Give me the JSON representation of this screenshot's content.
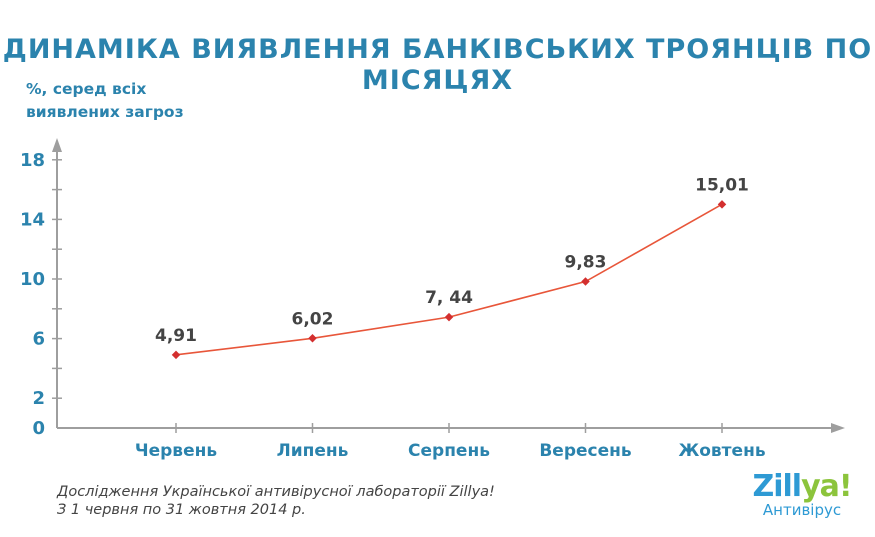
{
  "chart_data": {
    "type": "line",
    "title": "ДИНАМІКА ВИЯВЛЕННЯ БАНКІВСЬКИХ ТРОЯНЦІВ ПО МІСЯЦЯХ",
    "ylabel_lines": [
      "%, серед всіх",
      "виявлених загроз"
    ],
    "xlabel": "",
    "categories": [
      "Червень",
      "Липень",
      "Серпень",
      "Вересень",
      "Жовтень"
    ],
    "values": [
      4.91,
      6.02,
      7.44,
      9.83,
      15.01
    ],
    "data_labels": [
      "4,91",
      "6,02",
      "7, 44",
      "9,83",
      "15,01"
    ],
    "yticks": [
      0,
      2,
      6,
      10,
      14,
      18
    ],
    "ylim": [
      0,
      20
    ],
    "grid": false,
    "line_color": "#e8563a",
    "marker_color": "#d32f2f",
    "axis_color": "#9e9e9e",
    "text_color": "#2b83ad"
  },
  "footnote": {
    "line1": "Дослідження Української антивірусної лабораторії Zillya!",
    "line2": "З 1 червня по 31 жовтня 2014 р."
  },
  "logo": {
    "word_part1": "Zill",
    "word_part2": "ya!",
    "subtitle": "Антивірус"
  }
}
